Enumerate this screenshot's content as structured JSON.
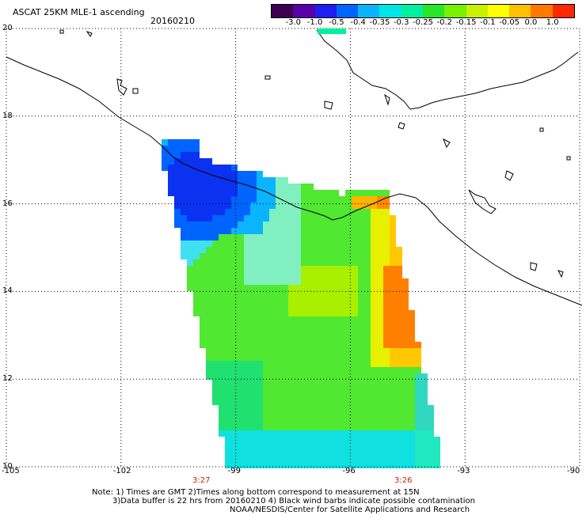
{
  "header": {
    "title": "ASCAT 25KM MLE-1 ascending",
    "date": "20160210"
  },
  "colorbar": {
    "labels": [
      "-3.0",
      "-1.0",
      "-0.5",
      "-0.4",
      "-0.35",
      "-0.3",
      "-0.25",
      "-0.2",
      "-0.15",
      "-0.1",
      "-0.05",
      "0.0",
      "1.0"
    ],
    "colors": [
      "#3c0050",
      "#5a00a8",
      "#1e1ef0",
      "#0064ff",
      "#0ab4ff",
      "#00e6e6",
      "#00f0a0",
      "#28e628",
      "#78f000",
      "#c8f000",
      "#ffff00",
      "#ffc000",
      "#ff7800",
      "#ff2800"
    ]
  },
  "map": {
    "lat_range": [
      10,
      20
    ],
    "lon_range": [
      -105,
      -90
    ],
    "lat_ticks": [
      "20",
      "18",
      "16",
      "14",
      "12",
      "10"
    ],
    "lon_ticks": [
      "-105",
      "-102",
      "-99",
      "-96",
      "-93",
      "-90"
    ],
    "times": [
      "3:27",
      "3:26"
    ]
  },
  "notes": {
    "line1": "Note: 1) Times are GMT 2)Times along bottom correspond to measurement at 15N",
    "line2": "3)Data buffer is 22 hrs from 20160210 4) Black wind barbs indicate possible contamination",
    "line3": "NOAA/NESDIS/Center for Satellite Applications and Research"
  }
}
